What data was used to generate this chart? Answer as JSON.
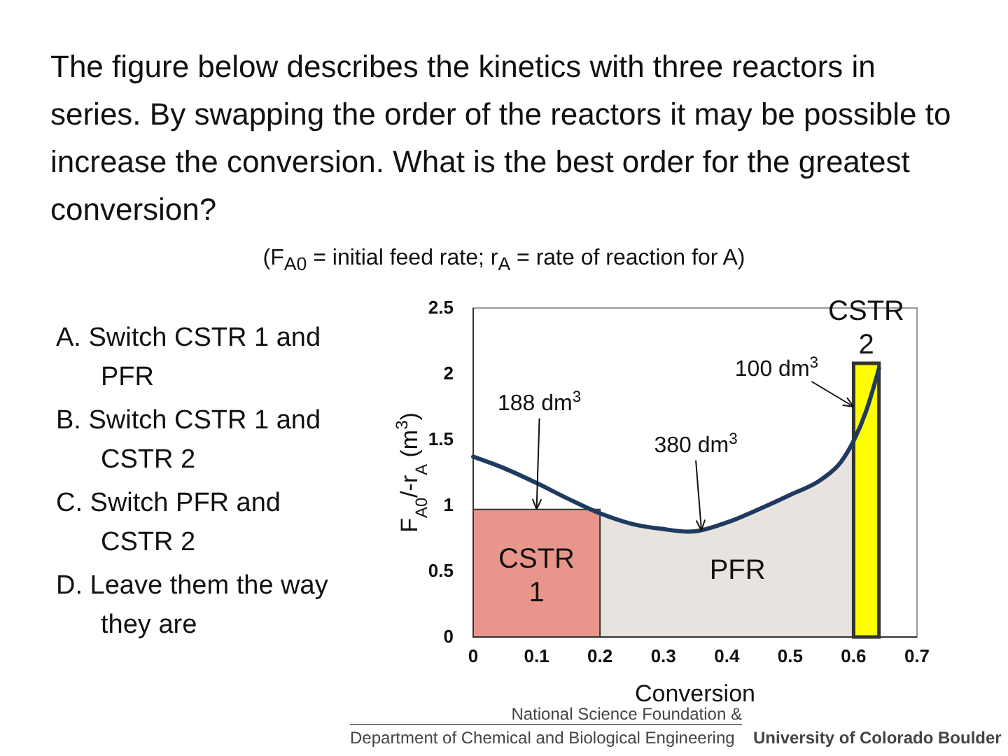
{
  "chart_data": {
    "type": "line",
    "title": "The figure below describes the kinetics with three reactors in series. By swapping the order of the reactors it may be possible to increase the conversion. What is the best order for the greatest conversion?",
    "subtitle": "(F$_{A0}$ = initial feed rate; r$_{A}$ = rate of reaction for A)",
    "xlabel": "Conversion",
    "ylabel": "F$_{A0}$/-r$_{A}$ (m$^{3}$)",
    "xlim": [
      0,
      0.7
    ],
    "xticks": [
      0,
      0.1,
      0.2,
      0.3,
      0.4,
      0.5,
      0.6,
      0.7
    ],
    "ylim": [
      0,
      2.5
    ],
    "yticks": [
      0,
      0.5,
      1,
      1.5,
      2,
      2.5
    ],
    "grid": false,
    "legend": false,
    "series": [
      {
        "type": "area",
        "name": "PFR",
        "color": "#e8e3df",
        "x": [
          0.2,
          0.25,
          0.3,
          0.34,
          0.4,
          0.45,
          0.5,
          0.55,
          0.58,
          0.6
        ],
        "values": [
          0.94,
          0.86,
          0.82,
          0.8,
          0.87,
          0.97,
          1.08,
          1.2,
          1.33,
          1.49
        ]
      },
      {
        "type": "area",
        "name": "CSTR 1",
        "color": "#e8968c",
        "x": [
          0,
          0.2
        ],
        "values": [
          0.97,
          0.97
        ]
      },
      {
        "type": "area",
        "name": "CSTR 2",
        "color": "#ffff00",
        "x": [
          0.6,
          0.64
        ],
        "values": [
          2.08,
          2.08
        ]
      },
      {
        "color": "#1f3a5f",
        "x": [
          0,
          0.05,
          0.1,
          0.15,
          0.2,
          0.25,
          0.3,
          0.34,
          0.4,
          0.45,
          0.5,
          0.55,
          0.58,
          0.6,
          0.62,
          0.64
        ],
        "values": [
          1.37,
          1.28,
          1.17,
          1.05,
          0.94,
          0.86,
          0.82,
          0.8,
          0.87,
          0.97,
          1.08,
          1.2,
          1.33,
          1.49,
          1.72,
          2.04
        ]
      }
    ],
    "annotations": [
      {
        "text": "188 dm$^{3}$",
        "x": 0.1,
        "y": 0.97
      },
      {
        "text": "380 dm$^{3}$",
        "x": 0.36,
        "y": 0.81
      },
      {
        "text": "100 dm$^{3}$",
        "x": 0.6,
        "y": 1.75
      },
      "A.  Switch CSTR 1 and PFR",
      "B.  Switch CSTR 1 and CSTR 2",
      "C.  Switch PFR  and CSTR 2",
      "D.  Leave them the way they are",
      "National Science Foundation &",
      "Department of Chemical and Biological Engineering",
      "University of Colorado Boulder"
    ]
  }
}
